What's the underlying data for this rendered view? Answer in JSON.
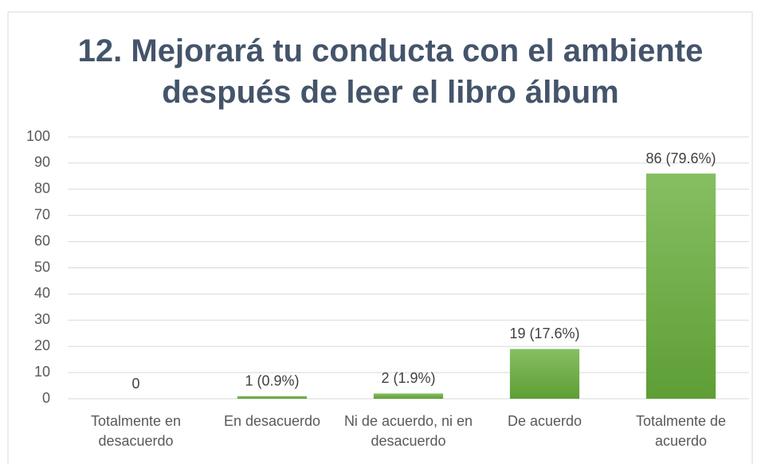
{
  "chart_data": {
    "type": "bar",
    "title": "12. Mejorará tu conducta con el ambiente después de leer el libro álbum",
    "categories": [
      "Totalmente en desacuerdo",
      "En desacuerdo",
      "Ni de acuerdo, ni en desacuerdo",
      "De acuerdo",
      "Totalmente de acuerdo"
    ],
    "values": [
      0,
      1,
      2,
      19,
      86
    ],
    "value_labels": [
      "0",
      "1 (0.9%)",
      "2 (1.9%)",
      "19 (17.6%)",
      "86 (79.6%)"
    ],
    "color": "#70ad47",
    "ylim": [
      0,
      100
    ],
    "yticks": [
      0,
      10,
      20,
      30,
      40,
      50,
      60,
      70,
      80,
      90,
      100
    ],
    "grid": true
  }
}
